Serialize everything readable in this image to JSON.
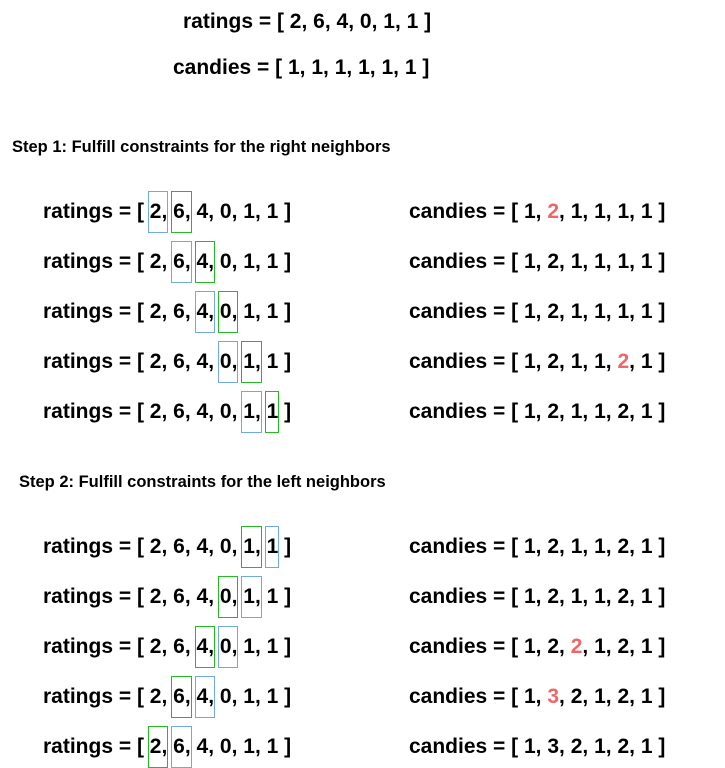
{
  "colors": {
    "current_box": "#22bb22",
    "neighbor_box": "#70a8e8",
    "updated_value": "#f06666"
  },
  "header": {
    "ratings": {
      "label": "ratings",
      "values": [
        2,
        6,
        4,
        0,
        1,
        1
      ]
    },
    "candies": {
      "label": "candies",
      "values": [
        1,
        1,
        1,
        1,
        1,
        1
      ]
    }
  },
  "step1": {
    "title": "Step 1: Fulfill constraints for the right neighbors",
    "rows": [
      {
        "ratings": [
          2,
          6,
          4,
          0,
          1,
          1
        ],
        "candies": [
          1,
          2,
          1,
          1,
          1,
          1
        ],
        "current_index": 1,
        "neighbor_index": 0,
        "updated_index": 1
      },
      {
        "ratings": [
          2,
          6,
          4,
          0,
          1,
          1
        ],
        "candies": [
          1,
          2,
          1,
          1,
          1,
          1
        ],
        "current_index": 2,
        "neighbor_index": 1,
        "updated_index": null
      },
      {
        "ratings": [
          2,
          6,
          4,
          0,
          1,
          1
        ],
        "candies": [
          1,
          2,
          1,
          1,
          1,
          1
        ],
        "current_index": 3,
        "neighbor_index": 2,
        "updated_index": null
      },
      {
        "ratings": [
          2,
          6,
          4,
          0,
          1,
          1
        ],
        "candies": [
          1,
          2,
          1,
          1,
          2,
          1
        ],
        "current_index": 4,
        "neighbor_index": 3,
        "updated_index": 4
      },
      {
        "ratings": [
          2,
          6,
          4,
          0,
          1,
          1
        ],
        "candies": [
          1,
          2,
          1,
          1,
          2,
          1
        ],
        "current_index": 5,
        "neighbor_index": 4,
        "updated_index": null
      }
    ]
  },
  "step2": {
    "title": "Step 2: Fulfill constraints for the left neighbors",
    "rows": [
      {
        "ratings": [
          2,
          6,
          4,
          0,
          1,
          1
        ],
        "candies": [
          1,
          2,
          1,
          1,
          2,
          1
        ],
        "current_index": 4,
        "neighbor_index": 5,
        "updated_index": null
      },
      {
        "ratings": [
          2,
          6,
          4,
          0,
          1,
          1
        ],
        "candies": [
          1,
          2,
          1,
          1,
          2,
          1
        ],
        "current_index": 3,
        "neighbor_index": 4,
        "updated_index": null
      },
      {
        "ratings": [
          2,
          6,
          4,
          0,
          1,
          1
        ],
        "candies": [
          1,
          2,
          2,
          1,
          2,
          1
        ],
        "current_index": 2,
        "neighbor_index": 3,
        "updated_index": 2
      },
      {
        "ratings": [
          2,
          6,
          4,
          0,
          1,
          1
        ],
        "candies": [
          1,
          3,
          2,
          1,
          2,
          1
        ],
        "current_index": 1,
        "neighbor_index": 2,
        "updated_index": 1
      },
      {
        "ratings": [
          2,
          6,
          4,
          0,
          1,
          1
        ],
        "candies": [
          1,
          3,
          2,
          1,
          2,
          1
        ],
        "current_index": 0,
        "neighbor_index": 1,
        "updated_index": null
      }
    ]
  }
}
